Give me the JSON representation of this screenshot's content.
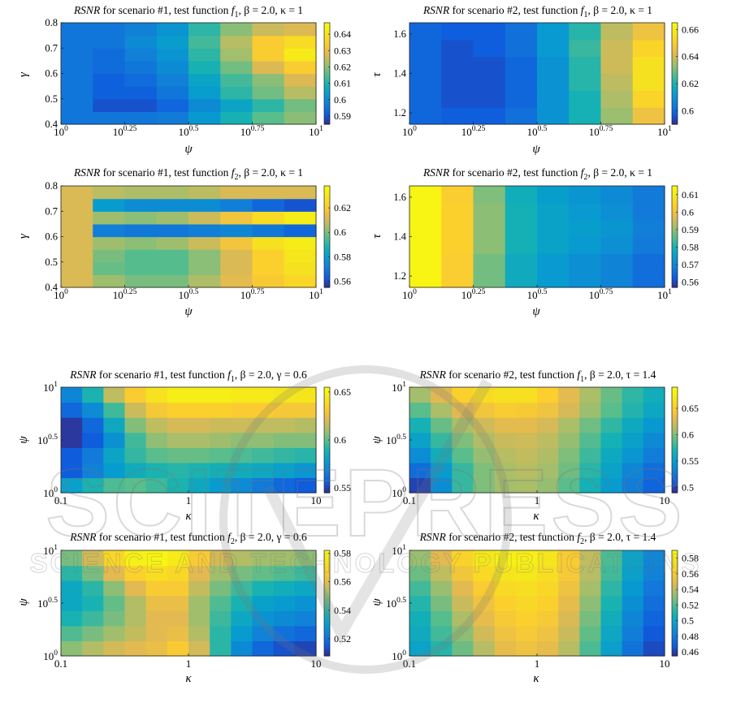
{
  "figure": {
    "watermark_text": "SCITEPRESS",
    "watermark_subtext": "SCIENCE AND TECHNOLOGY PUBLICATIONS"
  },
  "chart_data": [
    {
      "type": "heatmap",
      "title": {
        "rsnr": "RSNR",
        "pre": " for scenario #1, test function ",
        "f": "f",
        "fsub": "1",
        "beta": ", β = 2.0, ",
        "last": "κ = 1"
      },
      "xlabel": "ψ",
      "ylabel": "γ",
      "x_ticks": [
        {
          "b": "10",
          "e": "0"
        },
        {
          "b": "10",
          "e": "0.25"
        },
        {
          "b": "10",
          "e": "0.5"
        },
        {
          "b": "10",
          "e": "0.75"
        },
        {
          "b": "10",
          "e": "1"
        }
      ],
      "y_ticks": [
        {
          "t": "0.4",
          "f": 0
        },
        {
          "t": "0.5",
          "f": 0.25
        },
        {
          "t": "0.6",
          "f": 0.5
        },
        {
          "t": "0.7",
          "f": 0.75
        },
        {
          "t": "0.8",
          "f": 1
        }
      ],
      "colorbar": {
        "min": 0.585,
        "max": 0.647,
        "ticks": [
          0.59,
          0.6,
          0.61,
          0.62,
          0.63,
          0.64
        ]
      },
      "values": [
        [
          0.596,
          0.596,
          0.596,
          0.597,
          0.603,
          0.61,
          0.616,
          0.62
        ],
        [
          0.596,
          0.59,
          0.59,
          0.593,
          0.6,
          0.606,
          0.612,
          0.618
        ],
        [
          0.596,
          0.592,
          0.592,
          0.596,
          0.604,
          0.612,
          0.618,
          0.624
        ],
        [
          0.596,
          0.592,
          0.594,
          0.598,
          0.606,
          0.614,
          0.62,
          0.628
        ],
        [
          0.596,
          0.594,
          0.596,
          0.6,
          0.61,
          0.618,
          0.628,
          0.634
        ],
        [
          0.596,
          0.594,
          0.598,
          0.602,
          0.612,
          0.622,
          0.634,
          0.642
        ],
        [
          0.596,
          0.596,
          0.6,
          0.604,
          0.614,
          0.624,
          0.634,
          0.638
        ],
        [
          0.596,
          0.596,
          0.598,
          0.602,
          0.612,
          0.62,
          0.626,
          0.628
        ]
      ]
    },
    {
      "type": "heatmap",
      "title": {
        "rsnr": "RSNR",
        "pre": " for scenario #2, test function ",
        "f": "f",
        "fsub": "1",
        "beta": ", β = 2.0, ",
        "last": "κ = 1"
      },
      "xlabel": "ψ",
      "ylabel": "τ",
      "x_ticks": [
        {
          "b": "10",
          "e": "0"
        },
        {
          "b": "10",
          "e": "0.25"
        },
        {
          "b": "10",
          "e": "0.5"
        },
        {
          "b": "10",
          "e": "0.75"
        },
        {
          "b": "10",
          "e": "1"
        }
      ],
      "y_ticks": [
        {
          "t": "1.2",
          "f": 0.111
        },
        {
          "t": "1.4",
          "f": 0.5
        },
        {
          "t": "1.6",
          "f": 0.889
        }
      ],
      "colorbar": {
        "min": 0.59,
        "max": 0.665,
        "ticks": [
          0.6,
          0.62,
          0.64,
          0.66
        ]
      },
      "values": [
        [
          0.6,
          0.598,
          0.598,
          0.602,
          0.61,
          0.62,
          0.634,
          0.646
        ],
        [
          0.6,
          0.596,
          0.596,
          0.6,
          0.61,
          0.62,
          0.636,
          0.652
        ],
        [
          0.6,
          0.596,
          0.596,
          0.6,
          0.61,
          0.622,
          0.638,
          0.656
        ],
        [
          0.6,
          0.596,
          0.596,
          0.6,
          0.61,
          0.622,
          0.64,
          0.656
        ],
        [
          0.6,
          0.596,
          0.598,
          0.602,
          0.612,
          0.624,
          0.64,
          0.652
        ],
        [
          0.6,
          0.598,
          0.598,
          0.602,
          0.612,
          0.622,
          0.638,
          0.646
        ]
      ]
    },
    {
      "type": "heatmap",
      "title": {
        "rsnr": "RSNR",
        "pre": " for scenario #1, test function ",
        "f": "f",
        "fsub": "2",
        "beta": ", β = 2.0, ",
        "last": "κ = 1"
      },
      "xlabel": "ψ",
      "ylabel": "γ",
      "x_ticks": [
        {
          "b": "10",
          "e": "0"
        },
        {
          "b": "10",
          "e": "0.25"
        },
        {
          "b": "10",
          "e": "0.5"
        },
        {
          "b": "10",
          "e": "0.75"
        },
        {
          "b": "10",
          "e": "1"
        }
      ],
      "y_ticks": [
        {
          "t": "0.4",
          "f": 0
        },
        {
          "t": "0.5",
          "f": 0.25
        },
        {
          "t": "0.6",
          "f": 0.5
        },
        {
          "t": "0.7",
          "f": 0.75
        },
        {
          "t": "0.8",
          "f": 1
        }
      ],
      "colorbar": {
        "min": 0.555,
        "max": 0.638,
        "ticks": [
          0.56,
          0.58,
          0.6,
          0.62
        ]
      },
      "values": [
        [
          0.612,
          0.604,
          0.6,
          0.6,
          0.606,
          0.614,
          0.62,
          0.624
        ],
        [
          0.612,
          0.598,
          0.596,
          0.596,
          0.602,
          0.612,
          0.622,
          0.628
        ],
        [
          0.612,
          0.6,
          0.596,
          0.596,
          0.602,
          0.612,
          0.622,
          0.63
        ],
        [
          0.612,
          0.604,
          0.602,
          0.604,
          0.61,
          0.618,
          0.628,
          0.632
        ],
        [
          0.612,
          0.572,
          0.57,
          0.57,
          0.572,
          0.574,
          0.57,
          0.566
        ],
        [
          0.612,
          0.604,
          0.602,
          0.604,
          0.61,
          0.618,
          0.626,
          0.632
        ],
        [
          0.612,
          0.58,
          0.576,
          0.576,
          0.576,
          0.572,
          0.566,
          0.562
        ],
        [
          0.612,
          0.608,
          0.606,
          0.606,
          0.608,
          0.612,
          0.612,
          0.612
        ]
      ]
    },
    {
      "type": "heatmap",
      "title": {
        "rsnr": "RSNR",
        "pre": " for scenario #2, test function ",
        "f": "f",
        "fsub": "2",
        "beta": ", β = 2.0, ",
        "last": "κ = 1"
      },
      "xlabel": "ψ",
      "ylabel": "τ",
      "x_ticks": [
        {
          "b": "10",
          "e": "0"
        },
        {
          "b": "10",
          "e": "0.25"
        },
        {
          "b": "10",
          "e": "0.5"
        },
        {
          "b": "10",
          "e": "0.75"
        },
        {
          "b": "10",
          "e": "1"
        }
      ],
      "y_ticks": [
        {
          "t": "1.2",
          "f": 0.111
        },
        {
          "t": "1.4",
          "f": 0.5
        },
        {
          "t": "1.6",
          "f": 0.889
        }
      ],
      "colorbar": {
        "min": 0.557,
        "max": 0.615,
        "ticks": [
          0.56,
          0.57,
          0.58,
          0.59,
          0.6,
          0.61
        ]
      },
      "values": [
        [
          0.613,
          0.603,
          0.588,
          0.578,
          0.574,
          0.572,
          0.57,
          0.566
        ],
        [
          0.613,
          0.603,
          0.588,
          0.578,
          0.574,
          0.572,
          0.57,
          0.566
        ],
        [
          0.613,
          0.604,
          0.59,
          0.58,
          0.576,
          0.574,
          0.572,
          0.568
        ],
        [
          0.613,
          0.604,
          0.59,
          0.58,
          0.576,
          0.575,
          0.573,
          0.569
        ],
        [
          0.613,
          0.604,
          0.59,
          0.58,
          0.576,
          0.574,
          0.572,
          0.568
        ],
        [
          0.613,
          0.603,
          0.589,
          0.579,
          0.575,
          0.573,
          0.571,
          0.568
        ]
      ]
    },
    {
      "type": "heatmap",
      "title": {
        "rsnr": "RSNR",
        "pre": " for scenario #1, test function ",
        "f": "f",
        "fsub": "1",
        "beta": ", β = 2.0, ",
        "last": "γ = 0.6"
      },
      "xlabel": "κ",
      "ylabel": "ψ",
      "x_ticks": [
        {
          "t": "0.1",
          "f": 0
        },
        {
          "t": "1",
          "f": 0.5
        },
        {
          "t": "10",
          "f": 1
        }
      ],
      "y_ticks": [
        {
          "b": "10",
          "e": "0",
          "f": 0
        },
        {
          "b": "10",
          "e": "0.5",
          "f": 0.5
        },
        {
          "b": "10",
          "e": "1",
          "f": 1
        }
      ],
      "colorbar": {
        "min": 0.545,
        "max": 0.655,
        "ticks": [
          0.55,
          0.6,
          0.65
        ]
      },
      "values": [
        [
          0.58,
          0.59,
          0.598,
          0.6,
          0.596,
          0.59,
          0.584,
          0.578,
          0.572,
          0.566,
          0.56,
          0.556
        ],
        [
          0.556,
          0.568,
          0.578,
          0.586,
          0.59,
          0.592,
          0.59,
          0.588,
          0.586,
          0.584,
          0.58,
          0.576
        ],
        [
          0.556,
          0.566,
          0.582,
          0.594,
          0.6,
          0.602,
          0.602,
          0.6,
          0.598,
          0.596,
          0.594,
          0.592
        ],
        [
          0.548,
          0.556,
          0.574,
          0.596,
          0.608,
          0.612,
          0.612,
          0.61,
          0.608,
          0.608,
          0.606,
          0.606
        ],
        [
          0.548,
          0.56,
          0.584,
          0.606,
          0.616,
          0.62,
          0.62,
          0.618,
          0.618,
          0.616,
          0.616,
          0.614
        ],
        [
          0.56,
          0.572,
          0.596,
          0.618,
          0.63,
          0.634,
          0.634,
          0.634,
          0.632,
          0.632,
          0.63,
          0.63
        ],
        [
          0.57,
          0.59,
          0.616,
          0.632,
          0.642,
          0.648,
          0.648,
          0.648,
          0.646,
          0.646,
          0.644,
          0.644
        ]
      ]
    },
    {
      "type": "heatmap",
      "title": {
        "rsnr": "RSNR",
        "pre": " for scenario #2, test function ",
        "f": "f",
        "fsub": "1",
        "beta": ", β = 2.0, ",
        "last": "τ = 1.4"
      },
      "xlabel": "κ",
      "ylabel": "ψ",
      "x_ticks": [
        {
          "t": "0.1",
          "f": 0
        },
        {
          "t": "1",
          "f": 0.5
        },
        {
          "t": "10",
          "f": 1
        }
      ],
      "y_ticks": [
        {
          "b": "10",
          "e": "0",
          "f": 0
        },
        {
          "b": "10",
          "e": "0.5",
          "f": 0.5
        },
        {
          "b": "10",
          "e": "1",
          "f": 1
        }
      ],
      "colorbar": {
        "min": 0.49,
        "max": 0.69,
        "ticks": [
          0.5,
          0.55,
          0.6,
          0.65
        ]
      },
      "values": [
        [
          0.5,
          0.54,
          0.58,
          0.6,
          0.61,
          0.612,
          0.606,
          0.59,
          0.57,
          0.55,
          0.53,
          0.515
        ],
        [
          0.52,
          0.55,
          0.58,
          0.6,
          0.612,
          0.616,
          0.61,
          0.596,
          0.576,
          0.556,
          0.536,
          0.52
        ],
        [
          0.54,
          0.566,
          0.59,
          0.606,
          0.616,
          0.62,
          0.614,
          0.6,
          0.582,
          0.562,
          0.546,
          0.53
        ],
        [
          0.556,
          0.58,
          0.6,
          0.614,
          0.622,
          0.624,
          0.618,
          0.606,
          0.588,
          0.57,
          0.554,
          0.538
        ],
        [
          0.57,
          0.594,
          0.612,
          0.624,
          0.632,
          0.632,
          0.626,
          0.612,
          0.596,
          0.578,
          0.562,
          0.548
        ],
        [
          0.59,
          0.612,
          0.63,
          0.642,
          0.648,
          0.646,
          0.64,
          0.626,
          0.608,
          0.59,
          0.574,
          0.56
        ],
        [
          0.61,
          0.63,
          0.652,
          0.662,
          0.666,
          0.664,
          0.65,
          0.632,
          0.612,
          0.594,
          0.578,
          0.566
        ]
      ]
    },
    {
      "type": "heatmap",
      "title": {
        "rsnr": "RSNR",
        "pre": " for scenario #1, test function ",
        "f": "f",
        "fsub": "2",
        "beta": ", β = 2.0, ",
        "last": "γ = 0.6"
      },
      "xlabel": "κ",
      "ylabel": "ψ",
      "x_ticks": [
        {
          "t": "0.1",
          "f": 0
        },
        {
          "t": "1",
          "f": 0.5
        },
        {
          "t": "10",
          "f": 1
        }
      ],
      "y_ticks": [
        {
          "b": "10",
          "e": "0",
          "f": 0
        },
        {
          "b": "10",
          "e": "0.5",
          "f": 0.5
        },
        {
          "b": "10",
          "e": "1",
          "f": 1
        }
      ],
      "colorbar": {
        "min": 0.508,
        "max": 0.582,
        "ticks": [
          0.52,
          0.54,
          0.56,
          0.58
        ]
      },
      "values": [
        [
          0.55,
          0.554,
          0.558,
          0.56,
          0.562,
          0.566,
          0.558,
          0.54,
          0.526,
          0.518,
          0.514,
          0.512
        ],
        [
          0.544,
          0.548,
          0.552,
          0.556,
          0.56,
          0.562,
          0.554,
          0.54,
          0.53,
          0.524,
          0.52,
          0.518
        ],
        [
          0.538,
          0.542,
          0.548,
          0.554,
          0.56,
          0.56,
          0.552,
          0.542,
          0.534,
          0.528,
          0.526,
          0.524
        ],
        [
          0.534,
          0.538,
          0.546,
          0.554,
          0.562,
          0.562,
          0.552,
          0.544,
          0.538,
          0.532,
          0.53,
          0.528
        ],
        [
          0.534,
          0.54,
          0.55,
          0.56,
          0.566,
          0.566,
          0.556,
          0.548,
          0.542,
          0.538,
          0.536,
          0.534
        ],
        [
          0.54,
          0.548,
          0.56,
          0.568,
          0.572,
          0.57,
          0.56,
          0.552,
          0.548,
          0.546,
          0.544,
          0.542
        ],
        [
          0.548,
          0.558,
          0.57,
          0.578,
          0.58,
          0.576,
          0.566,
          0.558,
          0.554,
          0.552,
          0.552,
          0.55
        ]
      ]
    },
    {
      "type": "heatmap",
      "title": {
        "rsnr": "RSNR",
        "pre": " for scenario #2, test function ",
        "f": "f",
        "fsub": "2",
        "beta": ", β = 2.0, ",
        "last": "τ = 1.4"
      },
      "xlabel": "κ",
      "ylabel": "ψ",
      "x_ticks": [
        {
          "t": "0.1",
          "f": 0
        },
        {
          "t": "1",
          "f": 0.5
        },
        {
          "t": "10",
          "f": 1
        }
      ],
      "y_ticks": [
        {
          "b": "10",
          "e": "0",
          "f": 0
        },
        {
          "b": "10",
          "e": "0.5",
          "f": 0.5
        },
        {
          "b": "10",
          "e": "1",
          "f": 1
        }
      ],
      "colorbar": {
        "min": 0.455,
        "max": 0.59,
        "ticks": [
          0.46,
          0.48,
          0.5,
          0.52,
          0.54,
          0.56,
          0.58
        ]
      },
      "values": [
        [
          0.5,
          0.512,
          0.526,
          0.54,
          0.552,
          0.556,
          0.552,
          0.54,
          0.52,
          0.498,
          0.478,
          0.464
        ],
        [
          0.504,
          0.518,
          0.532,
          0.546,
          0.556,
          0.56,
          0.556,
          0.544,
          0.524,
          0.502,
          0.482,
          0.468
        ],
        [
          0.508,
          0.522,
          0.538,
          0.552,
          0.56,
          0.564,
          0.56,
          0.548,
          0.528,
          0.506,
          0.486,
          0.472
        ],
        [
          0.512,
          0.528,
          0.544,
          0.556,
          0.564,
          0.568,
          0.564,
          0.552,
          0.532,
          0.51,
          0.49,
          0.476
        ],
        [
          0.518,
          0.534,
          0.55,
          0.562,
          0.57,
          0.572,
          0.568,
          0.556,
          0.536,
          0.514,
          0.494,
          0.48
        ],
        [
          0.526,
          0.542,
          0.558,
          0.57,
          0.576,
          0.578,
          0.572,
          0.56,
          0.54,
          0.518,
          0.498,
          0.484
        ],
        [
          0.534,
          0.55,
          0.566,
          0.578,
          0.582,
          0.582,
          0.576,
          0.562,
          0.542,
          0.52,
          0.5,
          0.486
        ]
      ]
    }
  ]
}
